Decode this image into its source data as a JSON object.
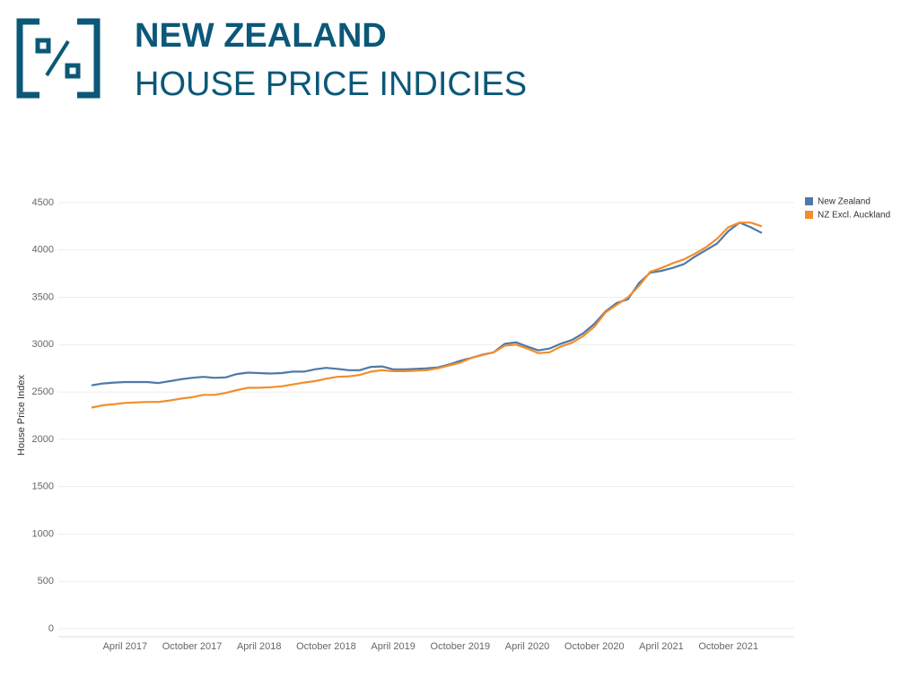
{
  "chart_data": {
    "type": "line",
    "title": "NEW ZEALAND",
    "subtitle": "HOUSE PRICE INDICIES",
    "y_label": "House Price Index",
    "categories": [
      null,
      null,
      null,
      "April 2017",
      null,
      null,
      null,
      null,
      null,
      "October 2017",
      null,
      null,
      null,
      null,
      null,
      "April 2018",
      null,
      null,
      null,
      null,
      null,
      "October 2018",
      null,
      null,
      null,
      null,
      null,
      "April 2019",
      null,
      null,
      null,
      null,
      null,
      "October 2019",
      null,
      null,
      null,
      null,
      null,
      "April 2020",
      null,
      null,
      null,
      null,
      null,
      "October 2020",
      null,
      null,
      null,
      null,
      null,
      "April 2021",
      null,
      null,
      null,
      null,
      null,
      "October 2021",
      null,
      null,
      null
    ],
    "series": [
      {
        "name": "New Zealand",
        "color": "#4e79a7",
        "values": [
          2570,
          2590,
          2600,
          2605,
          2605,
          2605,
          2595,
          2615,
          2635,
          2650,
          2660,
          2650,
          2655,
          2690,
          2705,
          2700,
          2695,
          2700,
          2715,
          2715,
          2740,
          2755,
          2745,
          2730,
          2730,
          2765,
          2770,
          2740,
          2740,
          2745,
          2750,
          2760,
          2790,
          2830,
          2860,
          2895,
          2920,
          3010,
          3025,
          2980,
          2940,
          2960,
          3010,
          3050,
          3120,
          3220,
          3350,
          3440,
          3480,
          3650,
          3760,
          3780,
          3810,
          3850,
          3930,
          4000,
          4070,
          4200,
          4290,
          4240,
          4180
        ]
      },
      {
        "name": "NZ Excl. Auckland",
        "color": "#f28e2b",
        "values": [
          2335,
          2360,
          2370,
          2385,
          2390,
          2395,
          2395,
          2410,
          2430,
          2445,
          2470,
          2470,
          2490,
          2520,
          2545,
          2545,
          2550,
          2560,
          2580,
          2600,
          2615,
          2640,
          2660,
          2665,
          2680,
          2715,
          2730,
          2720,
          2720,
          2725,
          2730,
          2750,
          2780,
          2810,
          2860,
          2890,
          2920,
          2990,
          3000,
          2960,
          2910,
          2920,
          2980,
          3020,
          3090,
          3190,
          3340,
          3420,
          3500,
          3620,
          3770,
          3810,
          3860,
          3900,
          3960,
          4030,
          4120,
          4240,
          4290,
          4290,
          4250
        ]
      }
    ],
    "ylim": [
      0,
      4500
    ],
    "yticks": [
      0,
      500,
      1000,
      1500,
      2000,
      2500,
      3000,
      3500,
      4000,
      4500
    ],
    "grid": true,
    "legend": "top-right"
  }
}
